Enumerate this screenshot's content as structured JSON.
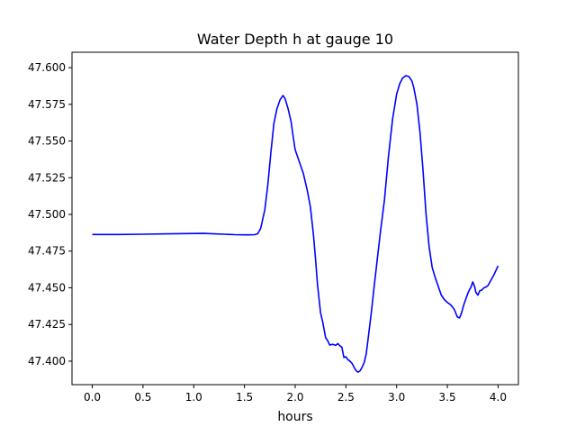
{
  "chart_data": {
    "type": "line",
    "title": "Water Depth h at gauge 10",
    "xlabel": "hours",
    "ylabel": "",
    "xlim": [
      -0.2,
      4.2
    ],
    "ylim": [
      47.384,
      47.6105
    ],
    "xticks": [
      0.0,
      0.5,
      1.0,
      1.5,
      2.0,
      2.5,
      3.0,
      3.5,
      4.0
    ],
    "xtick_labels": [
      "0.0",
      "0.5",
      "1.0",
      "1.5",
      "2.0",
      "2.5",
      "3.0",
      "3.5",
      "4.0"
    ],
    "yticks": [
      47.4,
      47.425,
      47.45,
      47.475,
      47.5,
      47.525,
      47.55,
      47.575,
      47.6
    ],
    "ytick_labels": [
      "47.400",
      "47.425",
      "47.450",
      "47.475",
      "47.500",
      "47.525",
      "47.550",
      "47.575",
      "47.600"
    ],
    "grid": false,
    "series": [
      {
        "color": "#0000ff",
        "x": [
          0.0,
          0.25,
          0.5,
          0.75,
          1.0,
          1.1,
          1.2,
          1.3,
          1.4,
          1.5,
          1.55,
          1.6,
          1.63,
          1.66,
          1.7,
          1.73,
          1.76,
          1.79,
          1.82,
          1.85,
          1.88,
          1.9,
          1.93,
          1.96,
          1.98,
          2.0,
          2.04,
          2.08,
          2.1,
          2.12,
          2.15,
          2.18,
          2.2,
          2.22,
          2.25,
          2.27,
          2.3,
          2.32,
          2.34,
          2.37,
          2.4,
          2.42,
          2.44,
          2.46,
          2.48,
          2.5,
          2.52,
          2.54,
          2.56,
          2.58,
          2.6,
          2.62,
          2.64,
          2.66,
          2.68,
          2.7,
          2.72,
          2.75,
          2.78,
          2.81,
          2.84,
          2.88,
          2.92,
          2.96,
          3.0,
          3.03,
          3.06,
          3.09,
          3.12,
          3.15,
          3.17,
          3.2,
          3.23,
          3.26,
          3.29,
          3.32,
          3.35,
          3.38,
          3.41,
          3.44,
          3.47,
          3.5,
          3.53,
          3.55,
          3.57,
          3.59,
          3.6,
          3.62,
          3.64,
          3.66,
          3.68,
          3.7,
          3.72,
          3.73,
          3.75,
          3.77,
          3.78,
          3.8,
          3.82,
          3.84,
          3.86,
          3.88,
          3.9,
          3.92,
          3.94,
          3.96,
          3.98,
          4.0
        ],
        "y": [
          47.4863,
          47.4863,
          47.4865,
          47.4868,
          47.487,
          47.4871,
          47.4868,
          47.4865,
          47.4862,
          47.4861,
          47.4861,
          47.4862,
          47.4868,
          47.4905,
          47.503,
          47.52,
          47.542,
          47.562,
          47.572,
          47.578,
          47.581,
          47.579,
          47.572,
          47.563,
          47.553,
          47.544,
          47.536,
          47.528,
          47.522,
          47.516,
          47.505,
          47.486,
          47.47,
          47.452,
          47.433,
          47.427,
          47.416,
          47.414,
          47.411,
          47.4115,
          47.4108,
          47.412,
          47.4105,
          47.4095,
          47.4025,
          47.403,
          47.401,
          47.4,
          47.3985,
          47.396,
          47.3935,
          47.3925,
          47.3935,
          47.396,
          47.399,
          47.405,
          47.416,
          47.433,
          47.452,
          47.47,
          47.488,
          47.51,
          47.54,
          47.565,
          47.582,
          47.589,
          47.593,
          47.5945,
          47.594,
          47.591,
          47.586,
          47.575,
          47.556,
          47.53,
          47.5,
          47.478,
          47.464,
          47.457,
          47.451,
          47.445,
          47.442,
          47.44,
          47.4385,
          47.437,
          47.435,
          47.4315,
          47.43,
          47.4295,
          47.433,
          47.438,
          47.442,
          47.446,
          47.449,
          47.45,
          47.454,
          47.4505,
          47.447,
          47.445,
          47.448,
          47.4485,
          47.45,
          47.4505,
          47.4515,
          47.454,
          47.4565,
          47.459,
          47.462,
          47.465
        ]
      }
    ]
  }
}
